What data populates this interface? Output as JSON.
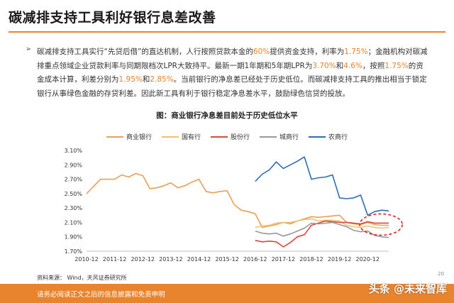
{
  "slide": {
    "title": "碳减排支持工具利好银行息差改善",
    "bullet_symbol": "➢",
    "paragraph": {
      "p1": "碳减排支持工具实行“先贷后借”的直达机制，人行按照贷款本金的",
      "p1_hl": "60%",
      "p2": "提供资金支持，利率为",
      "p2_hl": "1.75%",
      "p3": "；金融机构对碳减排重点领域企业贷款利率与同期限档次LPR大致持平。最新一期1年期和5年期LPR为",
      "p3_hl1": "3.70%",
      "p3_mid": "和",
      "p3_hl2": "4.6%",
      "p4": "，按照",
      "p4_hl": "1.75%",
      "p5": "的资金成本计算，利差分别为",
      "p5_hl1": "1.95%",
      "p5_mid": "和",
      "p5_hl2": "2.85%",
      "p6": "。当前银行的净息差已经处于历史低位。而碳减排支持工具的推出相当于锁定银行从事绿色金融的存贷利差。因此新工具有利于银行稳定净息差水平，鼓励绿色信贷的投放。"
    },
    "source": "资料来源： Wind，天风证券研究所",
    "footer": "请务必阅读正文之后的信息披露和免责申明",
    "page_number": "20",
    "watermark": "头条 @未来智库"
  },
  "colors": {
    "accent": "#e8842e",
    "shangye": "#e8a055",
    "guoyou": "#f0c070",
    "gufen": "#d84a3a",
    "chengshang": "#999999",
    "nongshang": "#2e6db4"
  },
  "chart_data": {
    "type": "line",
    "title": "图：商业银行净息差目前处于历史低位水平",
    "xlabel": "",
    "ylabel": "",
    "ylim": [
      1.7,
      3.1
    ],
    "yticks": [
      1.7,
      1.9,
      2.1,
      2.3,
      2.5,
      2.7,
      2.9,
      3.1
    ],
    "ytick_labels": [
      "1.70%",
      "1.90%",
      "2.10%",
      "2.30%",
      "2.50%",
      "2.70%",
      "2.90%",
      "3.10%"
    ],
    "xlim": [
      "2010-12",
      "2021-09"
    ],
    "xtick_labels": [
      "2010-12",
      "2011-12",
      "2012-12",
      "2013-12",
      "2014-12",
      "2015-12",
      "2016-12",
      "2017-12",
      "2018-12",
      "2019-12",
      "2020-12"
    ],
    "grid": false,
    "legend_position": "top-center",
    "annotation": "dashed red ellipse around 2021 values",
    "series": [
      {
        "name": "商业银行",
        "color_key": "shangye",
        "x": [
          "2010-12",
          "2011-03",
          "2011-06",
          "2011-09",
          "2011-12",
          "2012-03",
          "2012-06",
          "2012-09",
          "2012-12",
          "2013-03",
          "2013-06",
          "2013-09",
          "2013-12",
          "2014-03",
          "2014-06",
          "2014-09",
          "2014-12",
          "2015-03",
          "2015-06",
          "2015-09",
          "2015-12",
          "2016-03",
          "2016-06",
          "2016-09",
          "2016-12",
          "2017-03",
          "2017-06",
          "2017-09",
          "2017-12",
          "2018-03",
          "2018-06",
          "2018-09",
          "2018-12",
          "2019-03",
          "2019-06",
          "2019-09",
          "2019-12",
          "2020-03",
          "2020-06",
          "2020-09",
          "2020-12",
          "2021-03",
          "2021-06",
          "2021-09"
        ],
        "values": [
          2.5,
          2.6,
          2.7,
          2.7,
          2.7,
          2.76,
          2.73,
          2.78,
          2.75,
          2.57,
          2.58,
          2.61,
          2.65,
          2.58,
          2.61,
          2.66,
          2.7,
          2.53,
          2.51,
          2.53,
          2.54,
          2.35,
          2.27,
          2.25,
          2.22,
          2.03,
          2.05,
          2.07,
          2.1,
          2.08,
          2.12,
          2.15,
          2.18,
          2.17,
          2.18,
          2.19,
          2.2,
          2.1,
          2.08,
          2.07,
          2.1,
          2.07,
          2.06,
          2.06
        ]
      },
      {
        "name": "国有行",
        "color_key": "guoyou",
        "x": [
          "2016-12",
          "2017-03",
          "2017-06",
          "2017-09",
          "2017-12",
          "2018-03",
          "2018-06",
          "2018-09",
          "2018-12",
          "2019-03",
          "2019-06",
          "2019-09",
          "2019-12",
          "2020-03",
          "2020-06",
          "2020-09",
          "2020-12",
          "2021-03",
          "2021-06",
          "2021-09"
        ],
        "values": [
          2.03,
          2.05,
          2.06,
          2.09,
          2.1,
          2.1,
          2.12,
          2.14,
          2.15,
          2.12,
          2.13,
          2.13,
          2.12,
          2.06,
          2.04,
          2.03,
          2.05,
          2.03,
          2.02,
          2.03
        ]
      },
      {
        "name": "股份行",
        "color_key": "gufen",
        "x": [
          "2016-12",
          "2017-03",
          "2017-06",
          "2017-09",
          "2017-12",
          "2018-03",
          "2018-06",
          "2018-09",
          "2018-12",
          "2019-03",
          "2019-06",
          "2019-09",
          "2019-12",
          "2020-03",
          "2020-06",
          "2020-09",
          "2020-12",
          "2021-03",
          "2021-06",
          "2021-09"
        ],
        "values": [
          1.85,
          1.83,
          1.84,
          1.83,
          1.76,
          1.82,
          1.9,
          1.93,
          2.06,
          2.09,
          2.12,
          2.11,
          2.1,
          2.1,
          2.09,
          2.08,
          2.11,
          2.09,
          2.09,
          2.09
        ]
      },
      {
        "name": "城商行",
        "color_key": "chengshang",
        "x": [
          "2016-12",
          "2017-03",
          "2017-06",
          "2017-09",
          "2017-12",
          "2018-03",
          "2018-06",
          "2018-09",
          "2018-12",
          "2019-03",
          "2019-06",
          "2019-09",
          "2019-12",
          "2020-03",
          "2020-06",
          "2020-09",
          "2020-12",
          "2021-03",
          "2021-06",
          "2021-09"
        ],
        "values": [
          1.98,
          1.95,
          1.94,
          1.95,
          1.91,
          1.94,
          1.98,
          2.02,
          2.09,
          2.08,
          2.09,
          2.1,
          2.07,
          2.04,
          1.99,
          1.97,
          1.98,
          1.92,
          1.9,
          1.89
        ]
      },
      {
        "name": "农商行",
        "color_key": "nongshang",
        "x": [
          "2016-12",
          "2017-03",
          "2017-06",
          "2017-09",
          "2017-12",
          "2018-03",
          "2018-06",
          "2018-09",
          "2018-12",
          "2019-03",
          "2019-06",
          "2019-09",
          "2019-12",
          "2020-03",
          "2020-06",
          "2020-09",
          "2020-12",
          "2021-03",
          "2021-06",
          "2021-09"
        ],
        "values": [
          2.67,
          2.77,
          2.83,
          2.94,
          2.85,
          2.9,
          2.95,
          3.01,
          2.7,
          2.72,
          2.73,
          2.76,
          2.44,
          2.43,
          2.44,
          2.48,
          2.2,
          2.25,
          2.27,
          2.26
        ]
      }
    ]
  }
}
